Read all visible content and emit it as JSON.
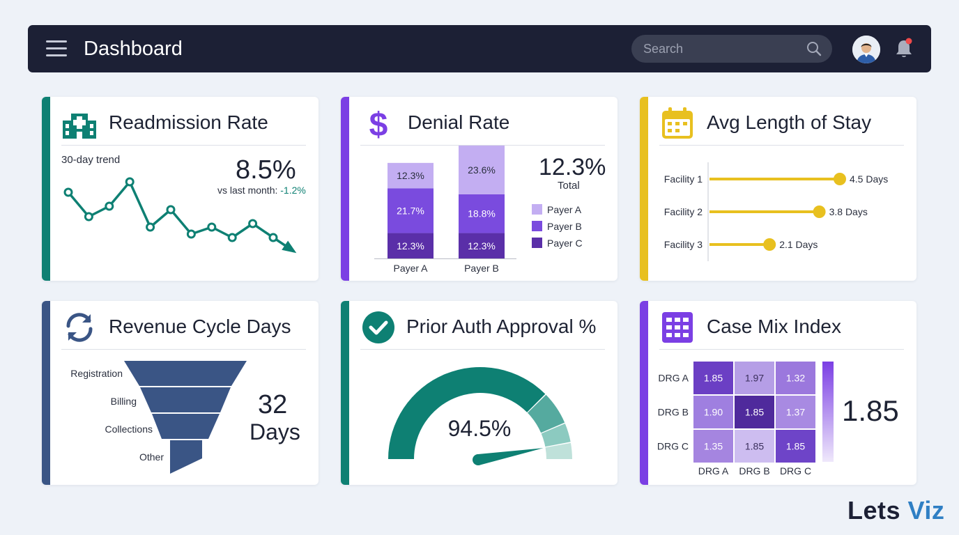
{
  "header": {
    "title": "Dashboard",
    "search_placeholder": "Search"
  },
  "icons": {
    "menu": "hamburger-menu-icon",
    "search": "search-icon",
    "avatar": "user-avatar",
    "notifications": "bell-icon"
  },
  "cards": {
    "readmission": {
      "title": "Readmission Rate",
      "subtitle": "30-day trend",
      "value": "8.5%",
      "comparison_label": "vs last month:",
      "comparison_value": "-1.2%",
      "accent": "#0e8073"
    },
    "denial": {
      "title": "Denial Rate",
      "value": "12.3%",
      "value_label": "Total",
      "accent": "#7b3fe4"
    },
    "los": {
      "title": "Avg Length of Stay",
      "accent": "#e8c01f"
    },
    "revenue": {
      "title": "Revenue Cycle Days",
      "value": "32",
      "unit": "Days",
      "accent": "#3a5585"
    },
    "prior_auth": {
      "title": "Prior Auth Approval %",
      "value": "94.5%",
      "accent": "#0e8073"
    },
    "case_mix": {
      "title": "Case Mix Index",
      "value": "1.85",
      "accent": "#7b3fe4"
    }
  },
  "chart_data": [
    {
      "type": "line",
      "name": "readmission-trend",
      "x": [
        1,
        2,
        3,
        4,
        5,
        6,
        7,
        8,
        9,
        10,
        11
      ],
      "values": [
        9.6,
        8.9,
        9.2,
        9.9,
        8.6,
        9.1,
        8.4,
        8.6,
        8.3,
        8.7,
        8.3
      ],
      "end_arrow_value": 7.9,
      "color": "#0e8073"
    },
    {
      "type": "bar",
      "stacked": true,
      "categories": [
        "Payer A",
        "Payer B"
      ],
      "series": [
        {
          "name": "Payer A",
          "values": [
            12.3,
            23.6
          ],
          "labels": [
            "12.3%",
            "23.6%"
          ],
          "color": "#c3aef2"
        },
        {
          "name": "Payer B",
          "values": [
            21.7,
            18.8
          ],
          "labels": [
            "21.7%",
            "18.8%"
          ],
          "color": "#7a4bde"
        },
        {
          "name": "Payer C",
          "values": [
            12.3,
            12.3
          ],
          "labels": [
            "12.3%",
            "12.3%"
          ],
          "color": "#5a2fa8"
        }
      ]
    },
    {
      "type": "bar",
      "orientation": "horizontal",
      "categories": [
        "Facility 1",
        "Facility 2",
        "Facility 3"
      ],
      "values": [
        4.5,
        3.8,
        2.1
      ],
      "labels": [
        "4.5 Days",
        "3.8 Days",
        "2.1 Days"
      ],
      "xlim": [
        0,
        5
      ],
      "color": "#e8c01f"
    },
    {
      "type": "funnel",
      "categories": [
        "Registration",
        "Billing",
        "Collections",
        "Other"
      ],
      "color": "#3a5585"
    },
    {
      "type": "gauge",
      "value": 94.5,
      "label": "94.5%",
      "range": [
        0,
        100
      ],
      "bands": [
        {
          "to": 75,
          "color": "#0e8073"
        },
        {
          "to": 87,
          "color": "#55aa9f"
        },
        {
          "to": 94,
          "color": "#8ccac0"
        },
        {
          "to": 100,
          "color": "#bfe1da"
        }
      ]
    },
    {
      "type": "heatmap",
      "rows": [
        "DRG A",
        "DRG B",
        "DRG C"
      ],
      "columns": [
        "DRG A",
        "DRG B",
        "DRG C"
      ],
      "values": [
        [
          "1.85",
          "1.97",
          "1.32"
        ],
        [
          "1.90",
          "1.85",
          "1.37"
        ],
        [
          "1.35",
          "1.85",
          "1.85"
        ]
      ],
      "cell_colors": [
        [
          "#6b3fc4",
          "#b59ee6",
          "#9b78dd"
        ],
        [
          "#9f7fe0",
          "#4f2a9c",
          "#a88ae2"
        ],
        [
          "#a585e0",
          "#cdbdf0",
          "#6e44c8"
        ]
      ]
    }
  ],
  "branding": {
    "logo_text_a": "Lets ",
    "logo_text_b": "Viz"
  }
}
